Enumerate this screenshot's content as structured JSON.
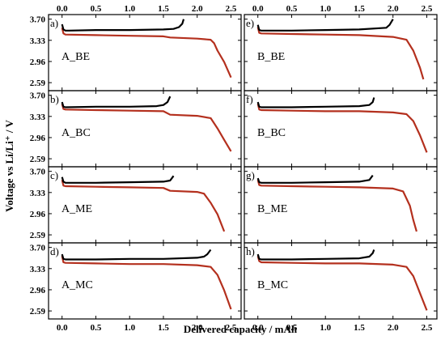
{
  "chart_data": {
    "type": "line",
    "xlabel": "Delivered capacity / mAh",
    "ylabel": "Voltage vs Li/Li⁺ / V",
    "x_ticks": [
      "0.0",
      "0.5",
      "1.0",
      "1.5",
      "2.0",
      "2.5"
    ],
    "y_ticks": [
      "2.59",
      "2.96",
      "3.33",
      "3.70"
    ],
    "xlim": [
      -0.2,
      2.65
    ],
    "ylim": [
      2.45,
      3.78
    ],
    "colors": {
      "charge": "#000000",
      "discharge": "#b4301e"
    },
    "panels": [
      {
        "letter": "a)",
        "name": "A_BE",
        "col": 0,
        "row": 0,
        "charge": {
          "x": [
            0.0,
            0.02,
            0.05,
            0.1,
            0.5,
            1.0,
            1.5,
            1.65,
            1.73,
            1.78,
            1.8
          ],
          "y": [
            3.61,
            3.52,
            3.5,
            3.5,
            3.51,
            3.51,
            3.52,
            3.53,
            3.56,
            3.62,
            3.7
          ]
        },
        "discharge": {
          "x": [
            0.0,
            0.02,
            0.05,
            0.5,
            1.0,
            1.5,
            1.6,
            2.0,
            2.2,
            2.25,
            2.3,
            2.4,
            2.5
          ],
          "y": [
            3.55,
            3.45,
            3.43,
            3.42,
            3.41,
            3.4,
            3.38,
            3.36,
            3.34,
            3.28,
            3.15,
            2.95,
            2.68
          ]
        }
      },
      {
        "letter": "b)",
        "name": "A_BC",
        "col": 0,
        "row": 1,
        "charge": {
          "x": [
            0.0,
            0.02,
            0.05,
            0.5,
            1.0,
            1.4,
            1.5,
            1.56,
            1.6
          ],
          "y": [
            3.58,
            3.5,
            3.49,
            3.5,
            3.5,
            3.51,
            3.53,
            3.58,
            3.68
          ]
        },
        "discharge": {
          "x": [
            0.0,
            0.02,
            0.05,
            0.5,
            1.0,
            1.5,
            1.6,
            2.0,
            2.2,
            2.3,
            2.4,
            2.5
          ],
          "y": [
            3.55,
            3.46,
            3.45,
            3.44,
            3.43,
            3.42,
            3.36,
            3.34,
            3.3,
            3.12,
            2.92,
            2.72
          ]
        }
      },
      {
        "letter": "c)",
        "name": "A_ME",
        "col": 0,
        "row": 2,
        "charge": {
          "x": [
            0.0,
            0.02,
            0.05,
            0.5,
            1.0,
            1.5,
            1.6,
            1.65
          ],
          "y": [
            3.6,
            3.52,
            3.5,
            3.5,
            3.51,
            3.52,
            3.54,
            3.62
          ]
        },
        "discharge": {
          "x": [
            0.0,
            0.02,
            0.05,
            0.5,
            1.0,
            1.5,
            1.6,
            2.0,
            2.1,
            2.2,
            2.3,
            2.4
          ],
          "y": [
            3.55,
            3.45,
            3.44,
            3.43,
            3.42,
            3.41,
            3.36,
            3.34,
            3.31,
            3.15,
            2.95,
            2.65
          ]
        }
      },
      {
        "letter": "d)",
        "name": "A_MC",
        "col": 0,
        "row": 3,
        "charge": {
          "x": [
            0.0,
            0.02,
            0.05,
            0.5,
            1.0,
            1.5,
            2.0,
            2.1,
            2.15,
            2.2
          ],
          "y": [
            3.58,
            3.5,
            3.49,
            3.49,
            3.5,
            3.5,
            3.52,
            3.54,
            3.58,
            3.66
          ]
        },
        "discharge": {
          "x": [
            0.0,
            0.02,
            0.05,
            0.5,
            1.0,
            1.5,
            2.0,
            2.2,
            2.3,
            2.4,
            2.5
          ],
          "y": [
            3.55,
            3.44,
            3.43,
            3.42,
            3.41,
            3.41,
            3.39,
            3.36,
            3.22,
            2.95,
            2.62
          ]
        }
      },
      {
        "letter": "e)",
        "name": "B_BE",
        "col": 1,
        "row": 0,
        "charge": {
          "x": [
            0.0,
            0.02,
            0.05,
            0.5,
            1.0,
            1.5,
            1.9,
            1.95,
            2.0
          ],
          "y": [
            3.6,
            3.51,
            3.5,
            3.5,
            3.51,
            3.52,
            3.55,
            3.6,
            3.7
          ]
        },
        "discharge": {
          "x": [
            0.0,
            0.02,
            0.05,
            0.5,
            1.0,
            1.5,
            2.0,
            2.2,
            2.3,
            2.4,
            2.45
          ],
          "y": [
            3.56,
            3.46,
            3.45,
            3.44,
            3.43,
            3.42,
            3.39,
            3.34,
            3.15,
            2.85,
            2.65
          ]
        }
      },
      {
        "letter": "f)",
        "name": "B_BC",
        "col": 1,
        "row": 1,
        "charge": {
          "x": [
            0.0,
            0.02,
            0.05,
            0.5,
            1.0,
            1.5,
            1.65,
            1.7,
            1.72
          ],
          "y": [
            3.58,
            3.5,
            3.49,
            3.49,
            3.5,
            3.51,
            3.53,
            3.58,
            3.66
          ]
        },
        "discharge": {
          "x": [
            0.0,
            0.02,
            0.05,
            0.5,
            1.0,
            1.5,
            2.0,
            2.2,
            2.3,
            2.4,
            2.5
          ],
          "y": [
            3.55,
            3.45,
            3.44,
            3.43,
            3.42,
            3.42,
            3.4,
            3.37,
            3.25,
            3.0,
            2.7
          ]
        }
      },
      {
        "letter": "g)",
        "name": "B_ME",
        "col": 1,
        "row": 2,
        "charge": {
          "x": [
            0.0,
            0.02,
            0.05,
            0.5,
            1.0,
            1.5,
            1.65,
            1.7
          ],
          "y": [
            3.58,
            3.51,
            3.5,
            3.5,
            3.51,
            3.52,
            3.55,
            3.63
          ]
        },
        "discharge": {
          "x": [
            0.0,
            0.02,
            0.05,
            0.5,
            1.0,
            1.5,
            2.0,
            2.15,
            2.25,
            2.3,
            2.35
          ],
          "y": [
            3.55,
            3.46,
            3.45,
            3.44,
            3.43,
            3.42,
            3.4,
            3.35,
            3.1,
            2.85,
            2.65
          ]
        }
      },
      {
        "letter": "h)",
        "name": "B_MC",
        "col": 1,
        "row": 3,
        "charge": {
          "x": [
            0.0,
            0.02,
            0.05,
            0.5,
            1.0,
            1.5,
            1.65,
            1.7,
            1.72
          ],
          "y": [
            3.58,
            3.5,
            3.49,
            3.49,
            3.5,
            3.51,
            3.54,
            3.6,
            3.66
          ]
        },
        "discharge": {
          "x": [
            0.0,
            0.02,
            0.05,
            0.5,
            1.0,
            1.5,
            2.0,
            2.2,
            2.3,
            2.4,
            2.5
          ],
          "y": [
            3.55,
            3.46,
            3.44,
            3.43,
            3.42,
            3.42,
            3.4,
            3.36,
            3.2,
            2.9,
            2.6
          ]
        }
      }
    ]
  }
}
